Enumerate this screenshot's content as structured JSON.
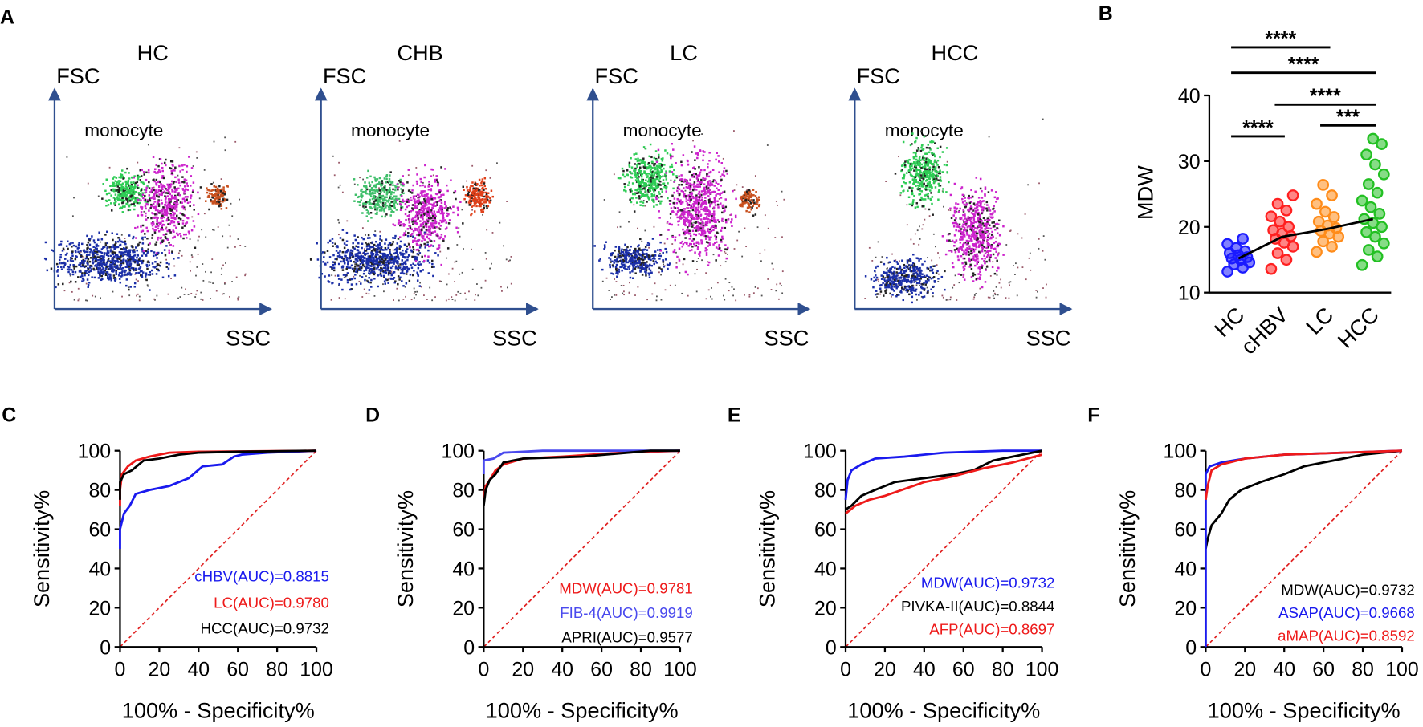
{
  "flow_panels": {
    "panel": "A",
    "plots": [
      {
        "title": "HC",
        "y_label": "FSC",
        "x_label": "SSC",
        "population_label": "monocyte"
      },
      {
        "title": "CHB",
        "y_label": "FSC",
        "x_label": "SSC",
        "population_label": "monocyte"
      },
      {
        "title": "LC",
        "y_label": "FSC",
        "x_label": "SSC",
        "population_label": "monocyte"
      },
      {
        "title": "HCC",
        "y_label": "FSC",
        "x_label": "SSC",
        "population_label": "monocyte"
      }
    ]
  },
  "chart_data": [
    {
      "type": "strip",
      "panel": "B",
      "y_label": "MDW",
      "ylim": [
        10,
        40
      ],
      "yticks": [
        10,
        20,
        30,
        40
      ],
      "series": [
        {
          "name": "HC",
          "color": "#1a1aff",
          "values": [
            13.2,
            13.8,
            14.3,
            14.6,
            15,
            15.2,
            15.4,
            15.7,
            16,
            16.3,
            16.8,
            17.4,
            18.2
          ]
        },
        {
          "name": "cHBV",
          "color": "#ff2020",
          "values": [
            13.6,
            15,
            16,
            17,
            17.6,
            18.2,
            18.6,
            19,
            19.5,
            20,
            20.8,
            21.6,
            22.5,
            23.5,
            24.8
          ]
        },
        {
          "name": "LC",
          "color": "#ff8c1a",
          "values": [
            16.2,
            17,
            17.8,
            18.5,
            19,
            19.4,
            19.8,
            20.2,
            20.8,
            21.5,
            22.3,
            23.5,
            24.8,
            26.4
          ]
        },
        {
          "name": "HCC",
          "color": "#22c022",
          "values": [
            14.2,
            15.5,
            16.5,
            17.5,
            18.5,
            19.2,
            20,
            20.6,
            21.2,
            22,
            23,
            24,
            25.2,
            26.5,
            28,
            29.5,
            31,
            32.6,
            33.4
          ]
        }
      ],
      "trend_values": [
        15.2,
        18.5,
        19.7,
        21.2
      ],
      "comparisons": [
        {
          "from": "HC",
          "to": "LC",
          "label": "****"
        },
        {
          "from": "HC",
          "to": "HCC",
          "label": "****"
        },
        {
          "from": "cHBV",
          "to": "HCC",
          "label": "****"
        },
        {
          "from": "HC",
          "to": "cHBV",
          "label": "****"
        },
        {
          "from": "LC",
          "to": "HCC",
          "label": "***"
        }
      ]
    },
    {
      "type": "line",
      "panel": "C",
      "x_label": "100% - Specificity%",
      "y_label": "Sensitivity%",
      "xlim": [
        0,
        100
      ],
      "ylim": [
        0,
        100
      ],
      "xticks": [
        0,
        20,
        40,
        60,
        80,
        100
      ],
      "yticks": [
        0,
        20,
        40,
        60,
        80,
        100
      ],
      "series": [
        {
          "name": "cHBV(AUC)=0.8815",
          "color": "#1a1aee",
          "x": [
            0,
            0,
            2,
            5,
            8,
            15,
            25,
            35,
            42,
            52,
            58,
            62,
            75,
            100
          ],
          "values": [
            50,
            60,
            68,
            72,
            78,
            80,
            82,
            86,
            92,
            93,
            97,
            98,
            99,
            100
          ]
        },
        {
          "name": "LC(AUC)=0.9780",
          "color": "#ee1a1a",
          "x": [
            0,
            0,
            1,
            4,
            8,
            15,
            25,
            40,
            100
          ],
          "values": [
            72,
            80,
            88,
            92,
            95,
            97,
            99,
            99.5,
            100
          ]
        },
        {
          "name": "HCC(AUC)=0.9732",
          "color": "#000000",
          "x": [
            0,
            0,
            2,
            6,
            12,
            20,
            30,
            40,
            60,
            100
          ],
          "values": [
            75,
            84,
            88,
            90,
            95,
            96,
            98,
            99,
            99.5,
            100
          ]
        }
      ]
    },
    {
      "type": "line",
      "panel": "D",
      "x_label": "100% - Specificity%",
      "y_label": "Sensitivity%",
      "xlim": [
        0,
        100
      ],
      "ylim": [
        0,
        100
      ],
      "xticks": [
        0,
        20,
        40,
        60,
        80,
        100
      ],
      "yticks": [
        0,
        20,
        40,
        60,
        80,
        100
      ],
      "series": [
        {
          "name": "MDW(AUC)=0.9781",
          "color": "#ee1a1a",
          "x": [
            0,
            1,
            3,
            6,
            10,
            20,
            40,
            70,
            100
          ],
          "values": [
            75,
            82,
            85,
            90,
            93,
            96,
            97,
            99,
            100
          ]
        },
        {
          "name": "FIB-4(AUC)=0.9919",
          "color": "#4a4aee",
          "x": [
            0,
            0,
            5,
            10,
            30,
            100
          ],
          "values": [
            88,
            95,
            96,
            99,
            100,
            100
          ]
        },
        {
          "name": "APRI(AUC)=0.9577",
          "color": "#000000",
          "x": [
            0,
            1,
            3,
            6,
            10,
            20,
            50,
            85,
            100
          ],
          "values": [
            72,
            80,
            85,
            88,
            94,
            96,
            97,
            100,
            100
          ]
        }
      ]
    },
    {
      "type": "line",
      "panel": "E",
      "x_label": "100% - Specificity%",
      "y_label": "Sensitivity%",
      "xlim": [
        0,
        100
      ],
      "ylim": [
        0,
        100
      ],
      "xticks": [
        0,
        20,
        40,
        60,
        80,
        100
      ],
      "yticks": [
        0,
        20,
        40,
        60,
        80,
        100
      ],
      "series": [
        {
          "name": "MDW(AUC)=0.9732",
          "color": "#1a1aee",
          "x": [
            0,
            1,
            3,
            8,
            15,
            30,
            50,
            80,
            100
          ],
          "values": [
            75,
            85,
            90,
            93,
            96,
            97,
            99,
            100,
            100
          ]
        },
        {
          "name": "PIVKA-II(AUC)=0.8844",
          "color": "#000000",
          "x": [
            0,
            3,
            8,
            15,
            25,
            40,
            55,
            65,
            75,
            90,
            100
          ],
          "values": [
            70,
            72,
            77,
            80,
            84,
            86,
            88,
            90,
            95,
            98,
            100
          ]
        },
        {
          "name": "AFP(AUC)=0.8697",
          "color": "#ee1a1a",
          "x": [
            0,
            5,
            12,
            20,
            40,
            55,
            70,
            85,
            100
          ],
          "values": [
            68,
            72,
            75,
            77,
            84,
            87,
            91,
            94,
            98
          ]
        }
      ]
    },
    {
      "type": "line",
      "panel": "F",
      "x_label": "100% - Specificity%",
      "y_label": "Sensitivity%",
      "xlim": [
        0,
        100
      ],
      "ylim": [
        0,
        100
      ],
      "xticks": [
        0,
        20,
        40,
        60,
        80,
        100
      ],
      "yticks": [
        0,
        20,
        40,
        60,
        80,
        100
      ],
      "series": [
        {
          "name": "MDW(AUC)=0.9732",
          "color": "#000000",
          "x": [
            0,
            1,
            3,
            8,
            12,
            18,
            28,
            40,
            50,
            65,
            80,
            100
          ],
          "values": [
            50,
            55,
            62,
            68,
            75,
            80,
            84,
            88,
            92,
            95,
            98,
            100
          ]
        },
        {
          "name": "ASAP(AUC)=0.9668",
          "color": "#1a1aee",
          "x": [
            0,
            0,
            2,
            8,
            20,
            40,
            100
          ],
          "values": [
            0,
            88,
            92,
            94,
            96,
            98,
            100
          ]
        },
        {
          "name": "aMAP(AUC)=0.8592",
          "color": "#ee1a1a",
          "x": [
            0,
            1,
            3,
            8,
            20,
            40,
            100
          ],
          "values": [
            75,
            82,
            90,
            93,
            96,
            98,
            100
          ]
        }
      ]
    }
  ]
}
